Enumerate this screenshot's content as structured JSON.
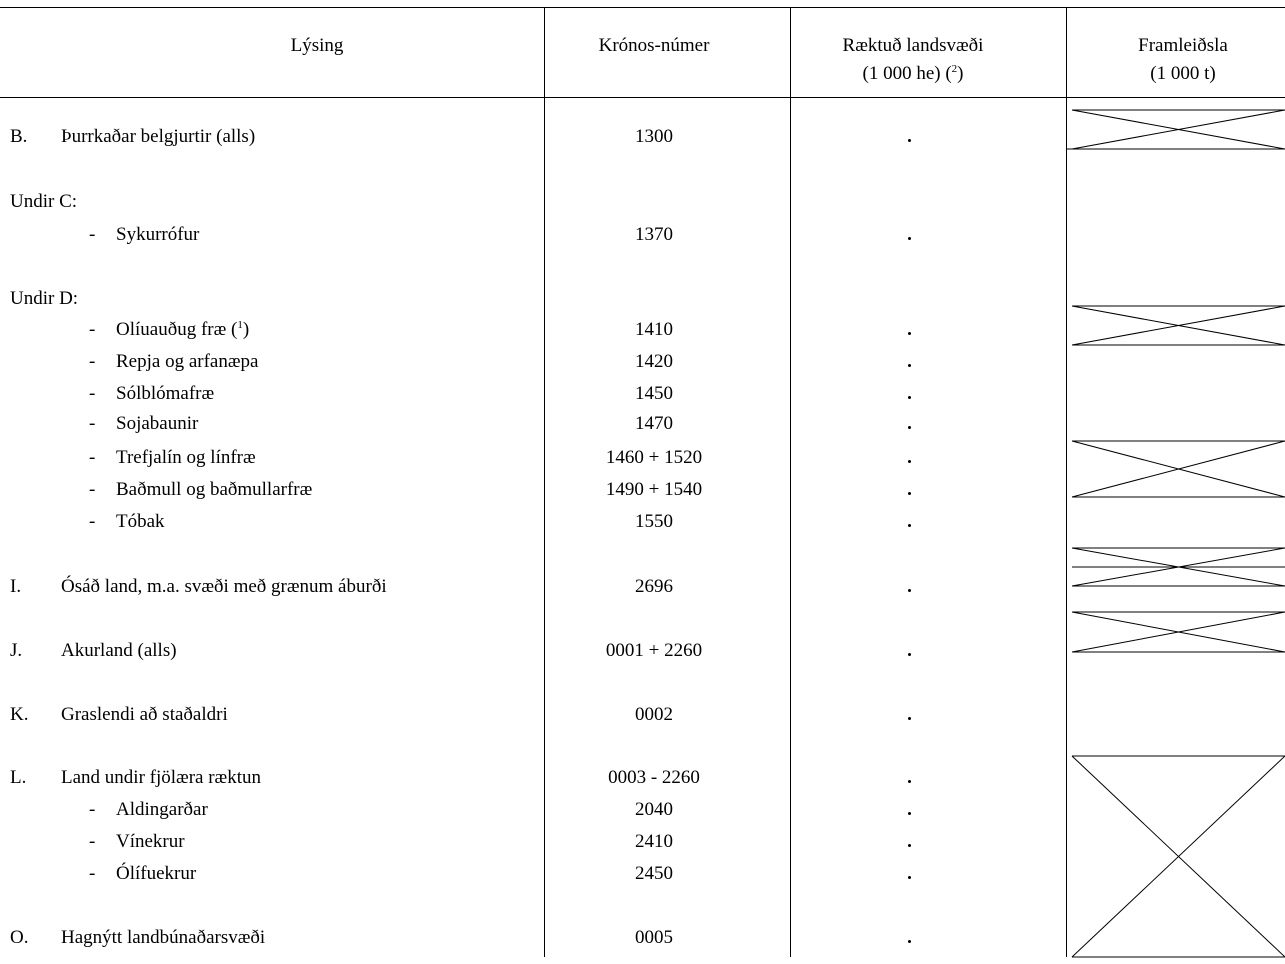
{
  "header": {
    "col_lysing": "Lýsing",
    "col_kronos": "Krónos-númer",
    "col_land_line1": "Ræktuð landsvæði",
    "col_land_line2_pre": "(1 000 he) (",
    "col_land_line2_sup": "2",
    "col_land_line2_post": ")",
    "col_framl_line1": "Framleiðsla",
    "col_framl_line2": "(1 000 t)"
  },
  "rows": [
    {
      "letter": "B.",
      "dash": "",
      "label": "Þurrkaðar belgjurtir (alls)",
      "code": "1300",
      "value": "·"
    },
    {
      "letter": "",
      "dash": "",
      "label": "Undir C:",
      "code": "",
      "value": ""
    },
    {
      "letter": "",
      "dash": "-",
      "label": "Sykurrófur",
      "code": "1370",
      "value": "·"
    },
    {
      "letter": "",
      "dash": "",
      "label": "Undir D:",
      "code": "",
      "value": ""
    },
    {
      "letter": "",
      "dash": "-",
      "label": "Olíuauðug fræ (",
      "label_sup": "1",
      "label_post": ")",
      "code": "1410",
      "value": "·"
    },
    {
      "letter": "",
      "dash": "-",
      "label": "Repja og arfanæpa",
      "code": "1420",
      "value": "·"
    },
    {
      "letter": "",
      "dash": "-",
      "label": "Sólblómafræ",
      "code": "1450",
      "value": "·"
    },
    {
      "letter": "",
      "dash": "-",
      "label": "Sojabaunir",
      "code": "1470",
      "value": "·"
    },
    {
      "letter": "",
      "dash": "-",
      "label": "Trefjalín og línfræ",
      "code": "1460 + 1520",
      "value": "·"
    },
    {
      "letter": "",
      "dash": "-",
      "label": "Baðmull og baðmullarfræ",
      "code": "1490 + 1540",
      "value": "·"
    },
    {
      "letter": "",
      "dash": "-",
      "label": "Tóbak",
      "code": "1550",
      "value": "·"
    },
    {
      "letter": "I.",
      "dash": "",
      "label": "Ósáð land, m.a. svæði með grænum áburði",
      "code": "2696",
      "value": "·"
    },
    {
      "letter": "J.",
      "dash": "",
      "label": "Akurland (alls)",
      "code": "0001 + 2260",
      "value": "·"
    },
    {
      "letter": "K.",
      "dash": "",
      "label": "Graslendi að staðaldri",
      "code": "0002",
      "value": "·"
    },
    {
      "letter": "L.",
      "dash": "",
      "label": "Land undir fjölæra ræktun",
      "code": "0003 - 2260",
      "value": "·"
    },
    {
      "letter": "",
      "dash": "-",
      "label": "Aldingarðar",
      "code": "2040",
      "value": "·"
    },
    {
      "letter": "",
      "dash": "-",
      "label": "Vínekrur",
      "code": "2410",
      "value": "·"
    },
    {
      "letter": "",
      "dash": "-",
      "label": "Ólífuekrur",
      "code": "2450",
      "value": "·"
    },
    {
      "letter": "O.",
      "dash": "",
      "label": "Hagnýtt landbúnaðarsvæði",
      "code": "0005",
      "value": "·"
    }
  ]
}
